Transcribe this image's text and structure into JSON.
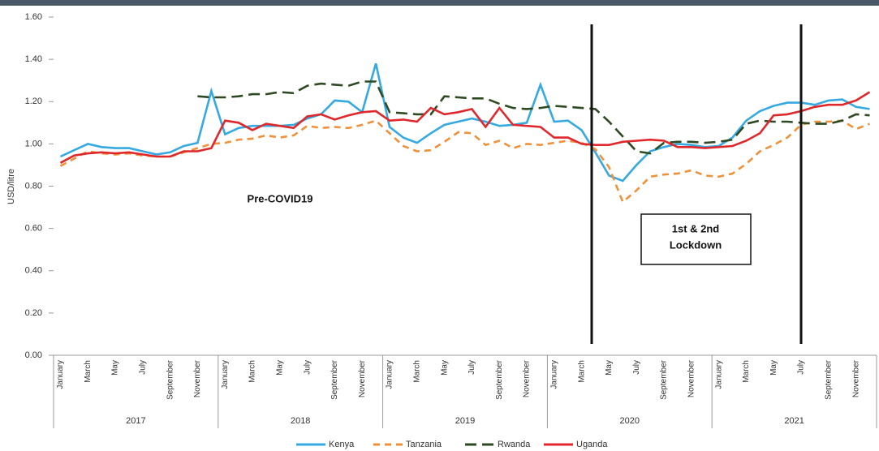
{
  "chart_data": {
    "type": "line",
    "y_label": "USD/litre",
    "categories": [
      "January",
      null,
      "March",
      null,
      "May",
      null,
      "July",
      null,
      "September",
      null,
      "November",
      null,
      "January",
      null,
      "March",
      null,
      "May",
      null,
      "July",
      null,
      "September",
      null,
      "November",
      null,
      "January",
      null,
      "March",
      null,
      "May",
      null,
      "July",
      null,
      "September",
      null,
      "November",
      null,
      "January",
      null,
      "March",
      null,
      "May",
      null,
      "July",
      null,
      "September",
      null,
      "November",
      null,
      "January",
      null,
      "March",
      null,
      "May",
      null,
      "July",
      null,
      "September",
      null,
      "November",
      null
    ],
    "years": [
      "2017",
      "2018",
      "2019",
      "2020",
      "2021"
    ],
    "ylim": [
      0,
      1.6
    ],
    "yticks": [
      {
        "value": 0,
        "label": "0.00"
      },
      {
        "value": 0.2,
        "label": "0.20"
      },
      {
        "value": 0.4,
        "label": "0.40"
      },
      {
        "value": 0.6,
        "label": "0.60"
      },
      {
        "value": 0.8,
        "label": "0.80"
      },
      {
        "value": 1.0,
        "label": "1.00"
      },
      {
        "value": 1.2,
        "label": "1.20"
      },
      {
        "value": 1.4,
        "label": "1.40"
      },
      {
        "value": 1.6,
        "label": "1.60"
      }
    ],
    "legend": "bottom",
    "annotations": [
      "Pre-COVID19",
      "1st & 2nd",
      "Lockdown"
    ],
    "series": [
      {
        "name": "Kenya",
        "color": "#35a9e0",
        "style": "solid",
        "values": [
          0.94,
          0.97,
          1.0,
          0.985,
          0.98,
          0.98,
          0.965,
          0.95,
          0.96,
          0.99,
          1.005,
          1.25,
          1.045,
          1.075,
          1.085,
          1.085,
          1.085,
          1.09,
          1.12,
          1.14,
          1.205,
          1.2,
          1.15,
          1.38,
          1.08,
          1.03,
          1.005,
          1.05,
          1.09,
          1.105,
          1.12,
          1.105,
          1.085,
          1.09,
          1.1,
          1.28,
          1.105,
          1.11,
          1.065,
          0.96,
          0.85,
          0.825,
          0.9,
          0.965,
          0.985,
          1.0,
          0.995,
          0.985,
          0.99,
          1.03,
          1.11,
          1.155,
          1.18,
          1.195,
          1.195,
          1.185,
          1.205,
          1.21,
          1.175,
          1.165
        ]
      },
      {
        "name": "Tanzania",
        "color": "#f0913a",
        "style": "dashed",
        "values": [
          0.895,
          0.93,
          0.965,
          0.955,
          0.95,
          0.955,
          0.945,
          0.94,
          0.94,
          0.96,
          0.98,
          1.0,
          1.005,
          1.02,
          1.025,
          1.04,
          1.03,
          1.04,
          1.085,
          1.075,
          1.08,
          1.075,
          1.09,
          1.11,
          1.05,
          0.99,
          0.965,
          0.97,
          1.01,
          1.055,
          1.05,
          0.995,
          1.015,
          0.98,
          1.0,
          0.995,
          1.005,
          1.015,
          1.005,
          0.975,
          0.89,
          0.725,
          0.78,
          0.845,
          0.855,
          0.86,
          0.875,
          0.85,
          0.845,
          0.86,
          0.905,
          0.965,
          0.995,
          1.03,
          1.09,
          1.105,
          1.105,
          1.11,
          1.07,
          1.095
        ]
      },
      {
        "name": "Rwanda",
        "color": "#2d4a22",
        "style": "longdash",
        "values": [
          null,
          null,
          null,
          null,
          null,
          null,
          null,
          null,
          null,
          null,
          1.225,
          1.22,
          1.22,
          1.225,
          1.235,
          1.235,
          1.245,
          1.24,
          1.275,
          1.285,
          1.28,
          1.275,
          1.295,
          1.295,
          1.15,
          1.145,
          1.14,
          1.14,
          1.225,
          1.22,
          1.215,
          1.215,
          1.19,
          1.17,
          1.165,
          1.17,
          1.18,
          1.175,
          1.17,
          1.165,
          1.105,
          1.035,
          0.965,
          0.955,
          1.005,
          1.01,
          1.01,
          1.005,
          1.01,
          1.02,
          1.095,
          1.11,
          1.105,
          1.105,
          1.1,
          1.095,
          1.095,
          1.11,
          1.14,
          1.135
        ]
      },
      {
        "name": "Uganda",
        "color": "#e0282c",
        "style": "solid",
        "values": [
          0.91,
          0.945,
          0.955,
          0.96,
          0.955,
          0.96,
          0.95,
          0.94,
          0.94,
          0.965,
          0.965,
          0.98,
          1.11,
          1.1,
          1.065,
          1.095,
          1.085,
          1.075,
          1.13,
          1.14,
          1.115,
          1.135,
          1.15,
          1.155,
          1.11,
          1.115,
          1.105,
          1.17,
          1.14,
          1.15,
          1.165,
          1.08,
          1.17,
          1.09,
          1.085,
          1.08,
          1.03,
          1.03,
          1.0,
          0.995,
          0.995,
          1.01,
          1.015,
          1.02,
          1.015,
          0.985,
          0.985,
          0.98,
          0.985,
          0.99,
          1.015,
          1.05,
          1.135,
          1.14,
          1.155,
          1.175,
          1.185,
          1.185,
          1.205,
          1.245
        ]
      }
    ]
  }
}
